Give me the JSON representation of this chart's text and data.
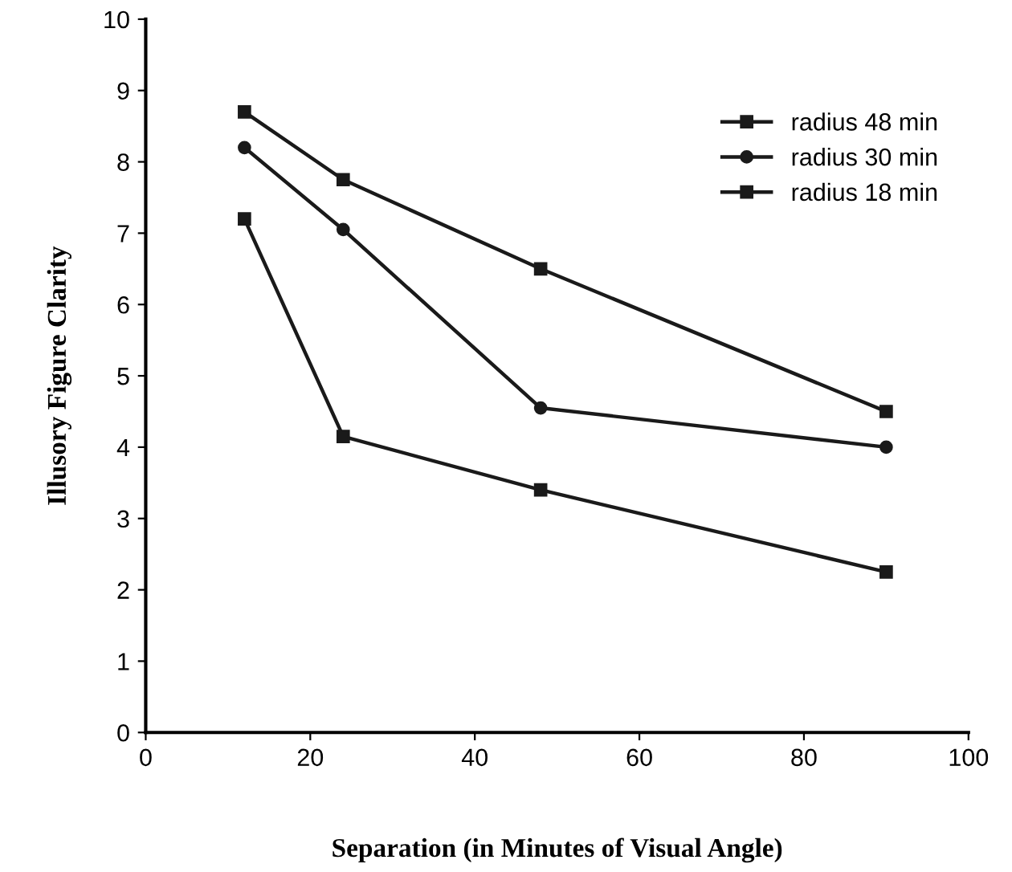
{
  "chart_data": {
    "type": "line",
    "xlabel": "Separation (in Minutes of Visual Angle)",
    "ylabel": "Illusory Figure Clarity",
    "x": [
      12,
      24,
      48,
      90
    ],
    "series": [
      {
        "name": "radius 48 min",
        "color": "#1a1a1a",
        "marker": "square",
        "values": [
          8.7,
          7.75,
          6.5,
          4.5
        ]
      },
      {
        "name": "radius 30 min",
        "color": "#1a1a1a",
        "marker": "circle",
        "values": [
          8.2,
          7.05,
          4.55,
          4.0
        ]
      },
      {
        "name": "radius 18 min",
        "color": "#1a1a1a",
        "marker": "square",
        "values": [
          7.2,
          4.15,
          3.4,
          2.25
        ]
      }
    ],
    "xlim": [
      0,
      100
    ],
    "xticks": [
      0,
      20,
      40,
      60,
      80,
      100
    ],
    "ylim": [
      0,
      10
    ],
    "yticks": [
      0,
      1,
      2,
      3,
      4,
      5,
      6,
      7,
      8,
      9,
      10
    ],
    "grid": false,
    "legend": "top right",
    "line_style": "solid"
  }
}
